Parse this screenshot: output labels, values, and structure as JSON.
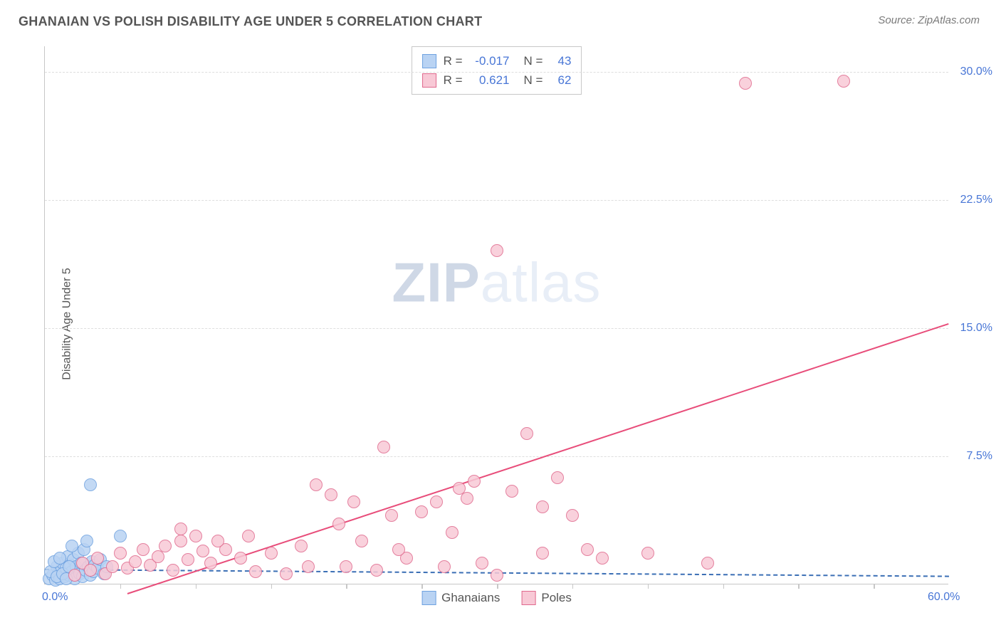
{
  "header": {
    "title": "GHANAIAN VS POLISH DISABILITY AGE UNDER 5 CORRELATION CHART",
    "source_prefix": "Source: ",
    "source_name": "ZipAtlas.com"
  },
  "chart": {
    "type": "scatter",
    "ylabel": "Disability Age Under 5",
    "xlim": [
      0,
      60
    ],
    "ylim": [
      0,
      31.5
    ],
    "x_axis_labels": [
      {
        "value": 0,
        "text": "0.0%"
      },
      {
        "value": 60,
        "text": "60.0%"
      }
    ],
    "x_tick_marks": [
      5,
      10,
      15,
      20,
      25,
      30,
      35,
      40,
      45,
      50,
      55
    ],
    "y_ticks": [
      {
        "value": 7.5,
        "text": "7.5%"
      },
      {
        "value": 15.0,
        "text": "15.0%"
      },
      {
        "value": 22.5,
        "text": "22.5%"
      },
      {
        "value": 30.0,
        "text": "30.0%"
      }
    ],
    "watermark": {
      "bold": "ZIP",
      "light": "atlas"
    },
    "marker_radius": 9,
    "series": [
      {
        "id": "ghanaians",
        "label": "Ghanaians",
        "R": "-0.017",
        "N": "43",
        "fill": "#b9d3f3",
        "stroke": "#6fa2e0",
        "trend": {
          "style": "dashed",
          "color": "#3b6fb5",
          "x1": 0,
          "y1": 0.9,
          "x2": 60,
          "y2": 0.5
        },
        "points": [
          [
            0.3,
            0.3
          ],
          [
            0.5,
            0.5
          ],
          [
            0.7,
            0.2
          ],
          [
            0.8,
            1.0
          ],
          [
            0.9,
            0.6
          ],
          [
            1.0,
            0.3
          ],
          [
            1.1,
            0.8
          ],
          [
            1.2,
            1.2
          ],
          [
            1.3,
            0.4
          ],
          [
            1.4,
            0.9
          ],
          [
            1.5,
            1.6
          ],
          [
            1.6,
            0.5
          ],
          [
            1.7,
            1.1
          ],
          [
            1.8,
            0.7
          ],
          [
            1.9,
            1.4
          ],
          [
            2.0,
            0.3
          ],
          [
            2.1,
            1.0
          ],
          [
            2.2,
            1.8
          ],
          [
            2.3,
            0.6
          ],
          [
            2.4,
            1.2
          ],
          [
            2.5,
            0.4
          ],
          [
            2.6,
            2.0
          ],
          [
            2.7,
            0.8
          ],
          [
            2.8,
            2.5
          ],
          [
            2.9,
            1.0
          ],
          [
            3.0,
            0.5
          ],
          [
            3.1,
            1.3
          ],
          [
            3.2,
            0.7
          ],
          [
            3.3,
            1.1
          ],
          [
            3.5,
            0.9
          ],
          [
            3.7,
            1.4
          ],
          [
            3.9,
            0.6
          ],
          [
            4.1,
            1.0
          ],
          [
            0.4,
            0.7
          ],
          [
            0.6,
            1.3
          ],
          [
            0.8,
            0.4
          ],
          [
            1.0,
            1.5
          ],
          [
            1.2,
            0.6
          ],
          [
            1.4,
            0.3
          ],
          [
            1.6,
            1.0
          ],
          [
            5.0,
            2.8
          ],
          [
            3.0,
            5.8
          ],
          [
            1.8,
            2.2
          ]
        ]
      },
      {
        "id": "poles",
        "label": "Poles",
        "R": "0.621",
        "N": "62",
        "fill": "#f8c9d6",
        "stroke": "#e06a8e",
        "trend": {
          "style": "solid",
          "color": "#e84d7a",
          "x1": 5.5,
          "y1": -0.5,
          "x2": 60,
          "y2": 15.3
        },
        "points": [
          [
            2.0,
            0.5
          ],
          [
            2.5,
            1.2
          ],
          [
            3.0,
            0.8
          ],
          [
            3.5,
            1.5
          ],
          [
            4.0,
            0.6
          ],
          [
            4.5,
            1.0
          ],
          [
            5.0,
            1.8
          ],
          [
            5.5,
            0.9
          ],
          [
            6.0,
            1.3
          ],
          [
            6.5,
            2.0
          ],
          [
            7.0,
            1.1
          ],
          [
            7.5,
            1.6
          ],
          [
            8.0,
            2.2
          ],
          [
            8.5,
            0.8
          ],
          [
            9.0,
            2.5
          ],
          [
            9.5,
            1.4
          ],
          [
            10.0,
            2.8
          ],
          [
            10.5,
            1.9
          ],
          [
            11.0,
            1.2
          ],
          [
            12.0,
            2.0
          ],
          [
            13.0,
            1.5
          ],
          [
            14.0,
            0.7
          ],
          [
            15.0,
            1.8
          ],
          [
            16.0,
            0.6
          ],
          [
            18.0,
            5.8
          ],
          [
            19.0,
            5.2
          ],
          [
            20.0,
            1.0
          ],
          [
            20.5,
            4.8
          ],
          [
            21.0,
            2.5
          ],
          [
            22.0,
            0.8
          ],
          [
            22.5,
            8.0
          ],
          [
            23.0,
            4.0
          ],
          [
            24.0,
            1.5
          ],
          [
            25.0,
            4.2
          ],
          [
            26.0,
            4.8
          ],
          [
            27.0,
            3.0
          ],
          [
            27.5,
            5.6
          ],
          [
            28.0,
            5.0
          ],
          [
            28.5,
            6.0
          ],
          [
            29.0,
            1.2
          ],
          [
            30.0,
            19.5
          ],
          [
            31.0,
            5.4
          ],
          [
            32.0,
            8.8
          ],
          [
            33.0,
            4.5
          ],
          [
            34.0,
            6.2
          ],
          [
            35.0,
            4.0
          ],
          [
            36.0,
            2.0
          ],
          [
            37.0,
            1.5
          ],
          [
            40.0,
            1.8
          ],
          [
            46.5,
            29.3
          ],
          [
            53.0,
            29.4
          ],
          [
            9.0,
            3.2
          ],
          [
            11.5,
            2.5
          ],
          [
            13.5,
            2.8
          ],
          [
            17.0,
            2.2
          ],
          [
            19.5,
            3.5
          ],
          [
            23.5,
            2.0
          ],
          [
            26.5,
            1.0
          ],
          [
            30.0,
            0.5
          ],
          [
            33.0,
            1.8
          ],
          [
            44.0,
            1.2
          ],
          [
            17.5,
            1.0
          ]
        ]
      }
    ],
    "legend_bottom": [
      {
        "label": "Ghanaians",
        "fill": "#b9d3f3",
        "stroke": "#6fa2e0"
      },
      {
        "label": "Poles",
        "fill": "#f8c9d6",
        "stroke": "#e06a8e"
      }
    ]
  }
}
